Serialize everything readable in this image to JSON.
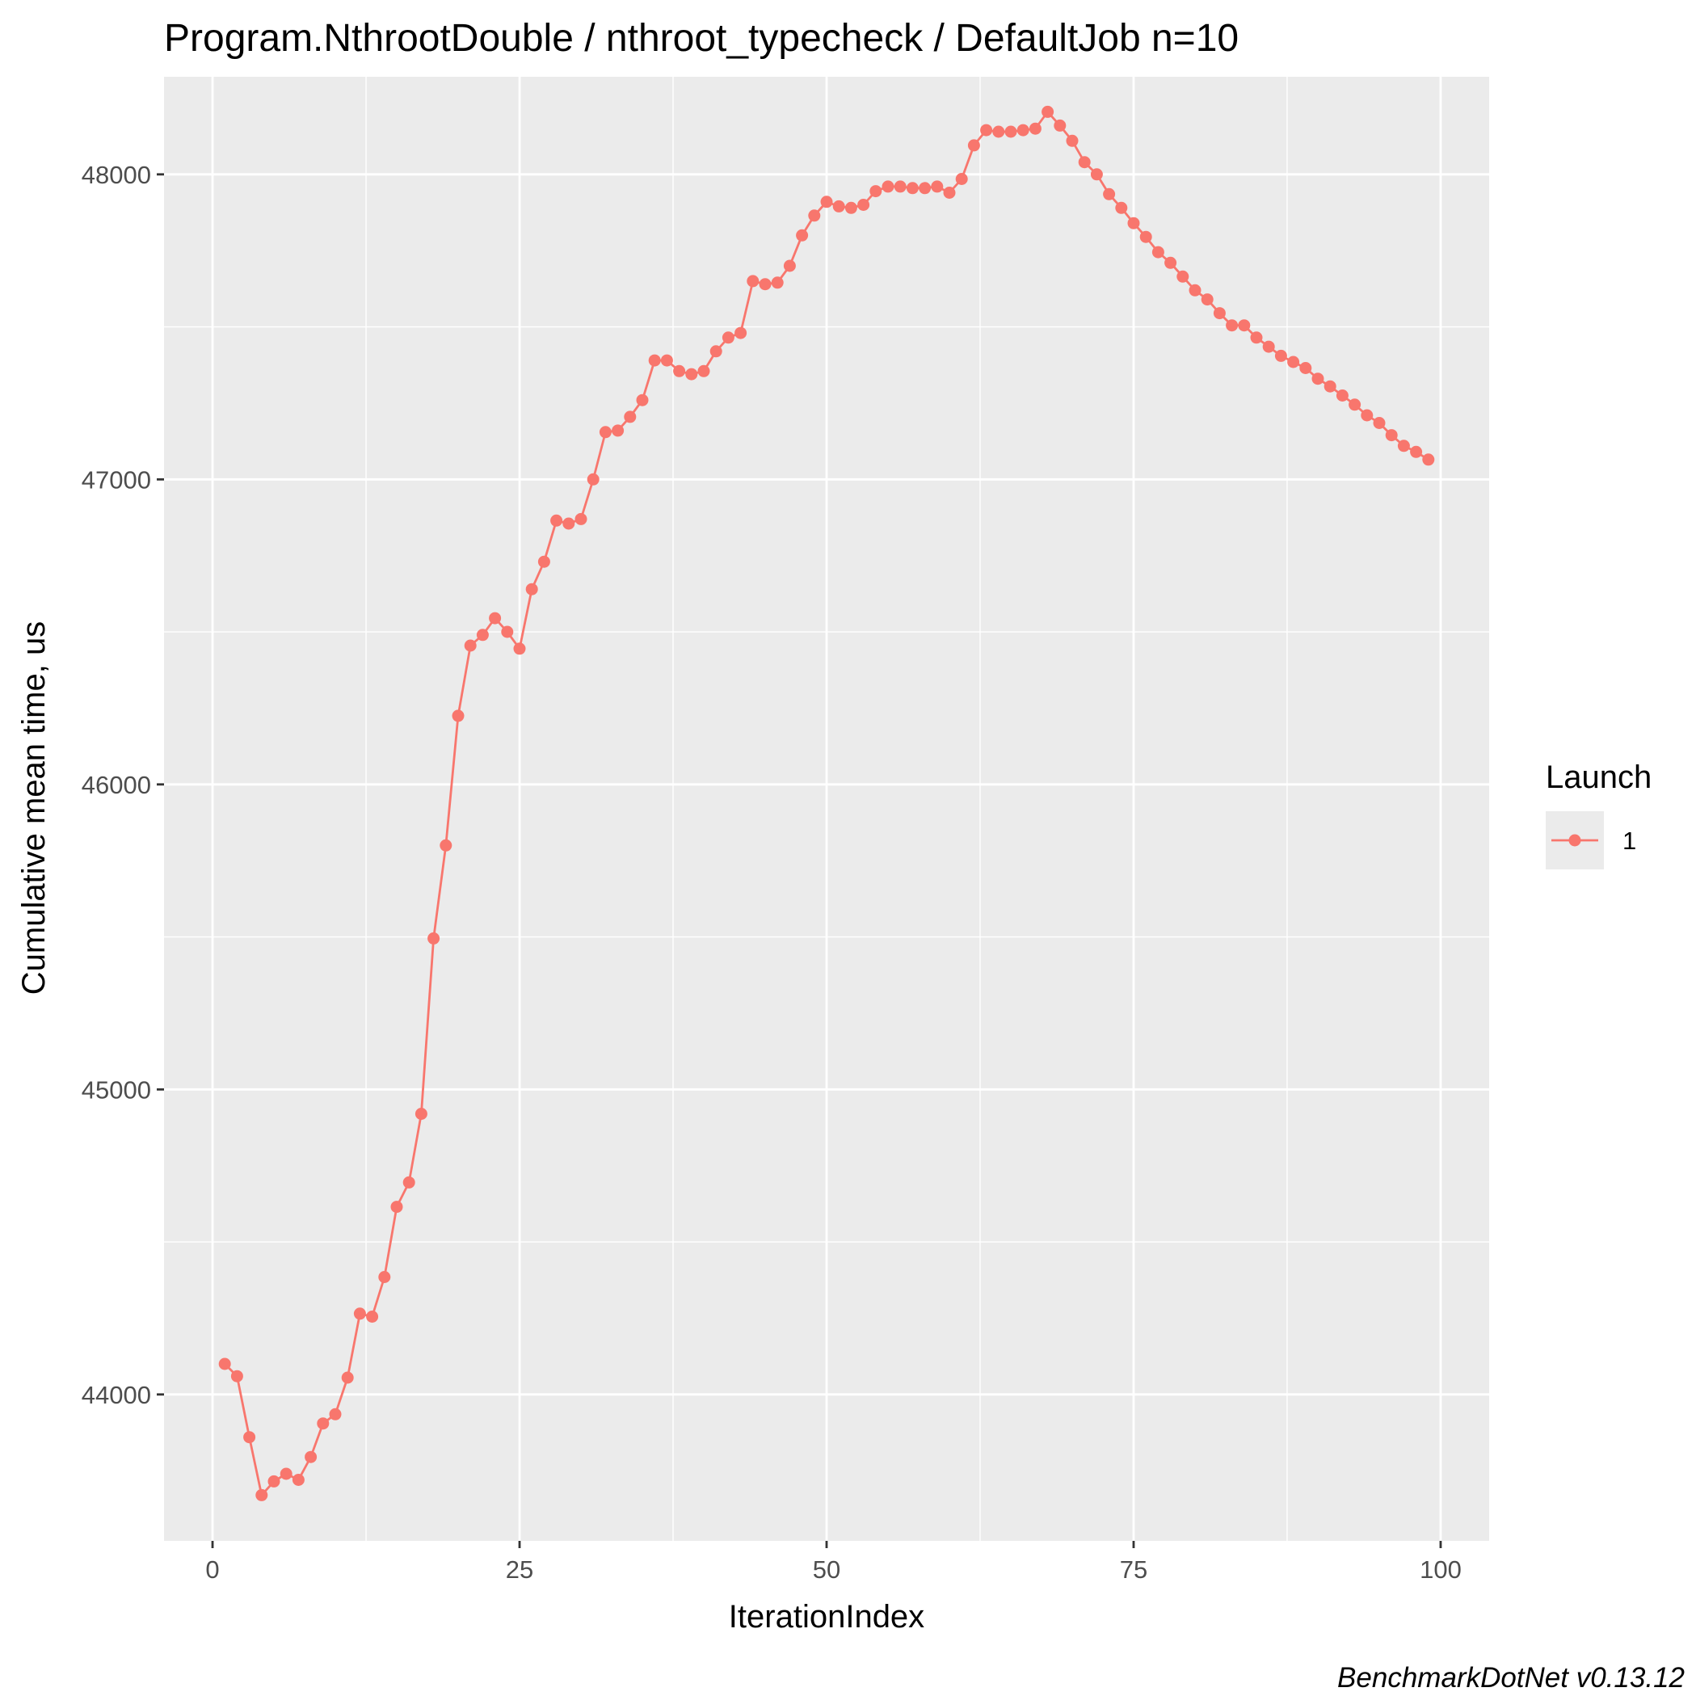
{
  "chart_data": {
    "type": "line",
    "title": "Program.NthrootDouble / nthroot_typecheck / DefaultJob n=10",
    "xlabel": "IterationIndex",
    "ylabel": "Cumulative mean time, us",
    "caption": "BenchmarkDotNet v0.13.12",
    "xlim": [
      -3.95,
      103.95
    ],
    "ylim": [
      43520,
      48320
    ],
    "x_ticks": [
      0,
      25,
      50,
      75,
      100
    ],
    "x_tick_labels": [
      "0",
      "25",
      "50",
      "75",
      "100"
    ],
    "y_ticks": [
      44000,
      45000,
      46000,
      47000,
      48000
    ],
    "y_tick_labels": [
      "44000",
      "45000",
      "46000",
      "47000",
      "48000"
    ],
    "grid": true,
    "legend": {
      "title": "Launch",
      "position": "right",
      "entries": [
        "1"
      ]
    },
    "colors": {
      "series": "#f8766d",
      "panel": "#ebebeb",
      "grid": "#ffffff"
    },
    "series": [
      {
        "name": "1",
        "x": [
          1,
          2,
          3,
          4,
          5,
          6,
          7,
          8,
          9,
          10,
          11,
          12,
          13,
          14,
          15,
          16,
          17,
          18,
          19,
          20,
          21,
          22,
          23,
          24,
          25,
          26,
          27,
          28,
          29,
          30,
          31,
          32,
          33,
          34,
          35,
          36,
          37,
          38,
          39,
          40,
          41,
          42,
          43,
          44,
          45,
          46,
          47,
          48,
          49,
          50,
          51,
          52,
          53,
          54,
          55,
          56,
          57,
          58,
          59,
          60,
          61,
          62,
          63,
          64,
          65,
          66,
          67,
          68,
          69,
          70,
          71,
          72,
          73,
          74,
          75,
          76,
          77,
          78,
          79,
          80,
          81,
          82,
          83,
          84,
          85,
          86,
          87,
          88,
          89,
          90,
          91,
          92,
          93,
          94,
          95,
          96,
          97,
          98,
          99
        ],
        "values": [
          44100,
          44060,
          43860,
          43670,
          43715,
          43740,
          43720,
          43795,
          43905,
          43935,
          44055,
          44265,
          44255,
          44385,
          44615,
          44695,
          44920,
          45495,
          45800,
          46225,
          46455,
          46490,
          46545,
          46500,
          46445,
          46640,
          46730,
          46865,
          46855,
          46870,
          47000,
          47155,
          47160,
          47205,
          47260,
          47390,
          47390,
          47355,
          47345,
          47355,
          47420,
          47465,
          47480,
          47650,
          47640,
          47645,
          47700,
          47800,
          47865,
          47910,
          47895,
          47890,
          47900,
          47945,
          47960,
          47960,
          47955,
          47955,
          47960,
          47940,
          47985,
          48095,
          48145,
          48140,
          48140,
          48145,
          48150,
          48205,
          48160,
          48110,
          48040,
          48000,
          47935,
          47890,
          47840,
          47795,
          47745,
          47710,
          47665,
          47620,
          47590,
          47545,
          47505,
          47505,
          47465,
          47435,
          47405,
          47385,
          47365,
          47330,
          47305,
          47275,
          47245,
          47210,
          47185,
          47145,
          47110,
          47090,
          47065
        ]
      }
    ]
  }
}
